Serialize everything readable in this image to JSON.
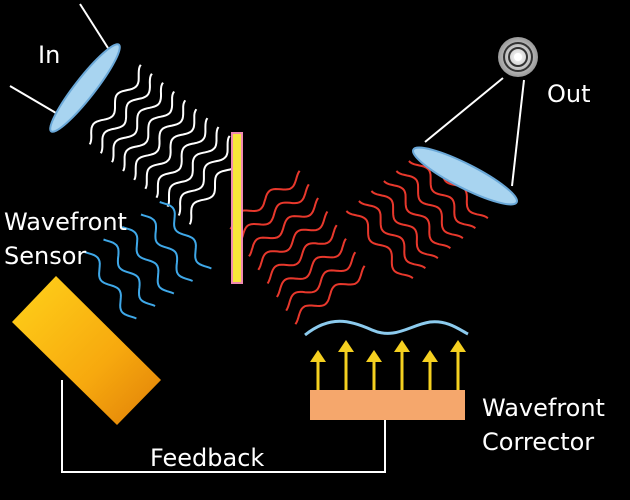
{
  "labels": {
    "in": "In",
    "out": "Out",
    "sensor": [
      "Wavefront",
      "Sensor"
    ],
    "corrector": [
      "Wavefront",
      "Corrector"
    ],
    "feedback": "Feedback"
  }
}
